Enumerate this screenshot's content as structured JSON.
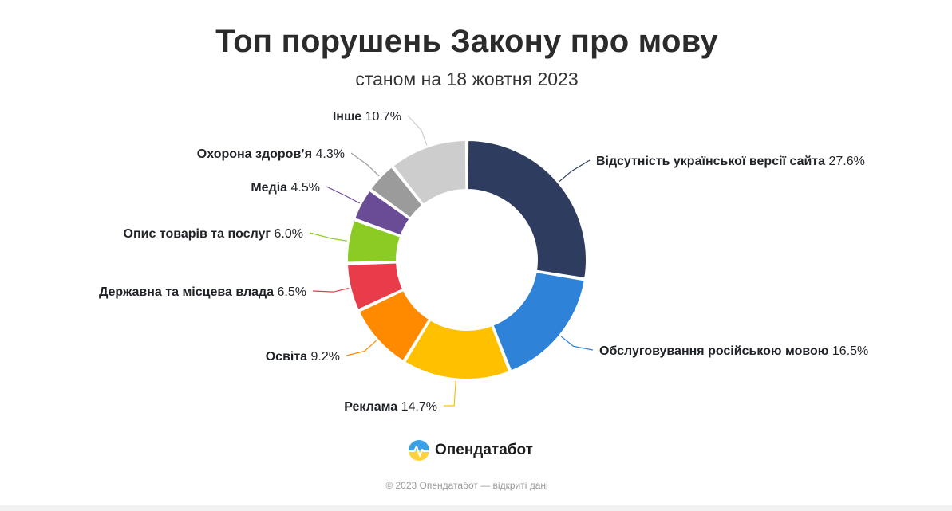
{
  "page": {
    "title": "Топ порушень Закону про мову",
    "subtitle": "станом на 18 жовтня 2023",
    "brand": "Опендатабот",
    "footer": "© 2023 Опендатабот — відкриті дані"
  },
  "chart_data": {
    "type": "pie",
    "variant": "donut",
    "title": "Топ порушень Закону про мову",
    "subtitle": "станом на 18 жовтня 2023",
    "unit": "%",
    "slices": [
      {
        "label": "Відсутність української версії сайта",
        "value": 27.6,
        "display": "27.6%",
        "color": "#2e3d5f"
      },
      {
        "label": "Обслуговування російською мовою",
        "value": 16.5,
        "display": "16.5%",
        "color": "#2e83d9"
      },
      {
        "label": "Реклама",
        "value": 14.7,
        "display": "14.7%",
        "color": "#ffc000"
      },
      {
        "label": "Освіта",
        "value": 9.2,
        "display": "9.2%",
        "color": "#ff8a00"
      },
      {
        "label": "Державна та місцева влада",
        "value": 6.5,
        "display": "6.5%",
        "color": "#e83c4a"
      },
      {
        "label": "Опис товарів та послуг",
        "value": 6.0,
        "display": "6.0%",
        "color": "#8bcb23"
      },
      {
        "label": "Медіа",
        "value": 4.5,
        "display": "4.5%",
        "color": "#6a4b96"
      },
      {
        "label": "Охорона здоров’я",
        "value": 4.3,
        "display": "4.3%",
        "color": "#9b9b9b"
      },
      {
        "label": "Інше",
        "value": 10.7,
        "display": "10.7%",
        "color": "#cdcdcd"
      }
    ]
  },
  "colors": {
    "title": "#2b2b2b",
    "footer": "#9a9a9a"
  }
}
